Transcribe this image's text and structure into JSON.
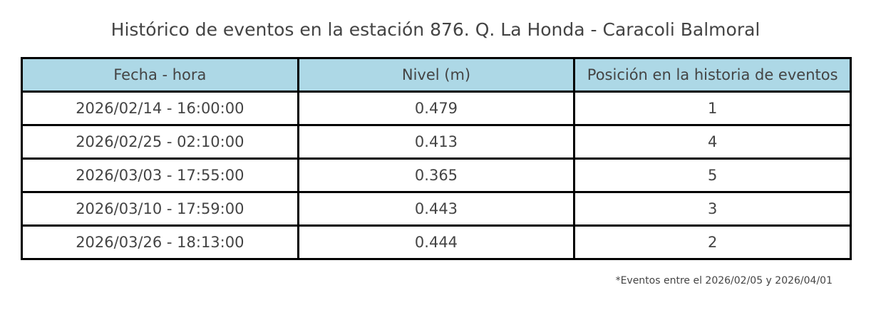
{
  "title": "Histórico de eventos en la estación 876. Q. La Honda - Caracoli Balmoral",
  "table": {
    "header": [
      "Fecha - hora",
      "Nivel (m)",
      "Posición en la historia de eventos"
    ],
    "rows": [
      [
        "2026/02/14 - 16:00:00",
        "0.479",
        "1"
      ],
      [
        "2026/02/25 - 02:10:00",
        "0.413",
        "4"
      ],
      [
        "2026/03/03 - 17:55:00",
        "0.365",
        "5"
      ],
      [
        "2026/03/10 - 17:59:00",
        "0.443",
        "3"
      ],
      [
        "2026/03/26 - 18:13:00",
        "0.444",
        "2"
      ]
    ]
  },
  "footnote": "*Eventos entre el 2026/02/05 y 2026/04/01"
}
